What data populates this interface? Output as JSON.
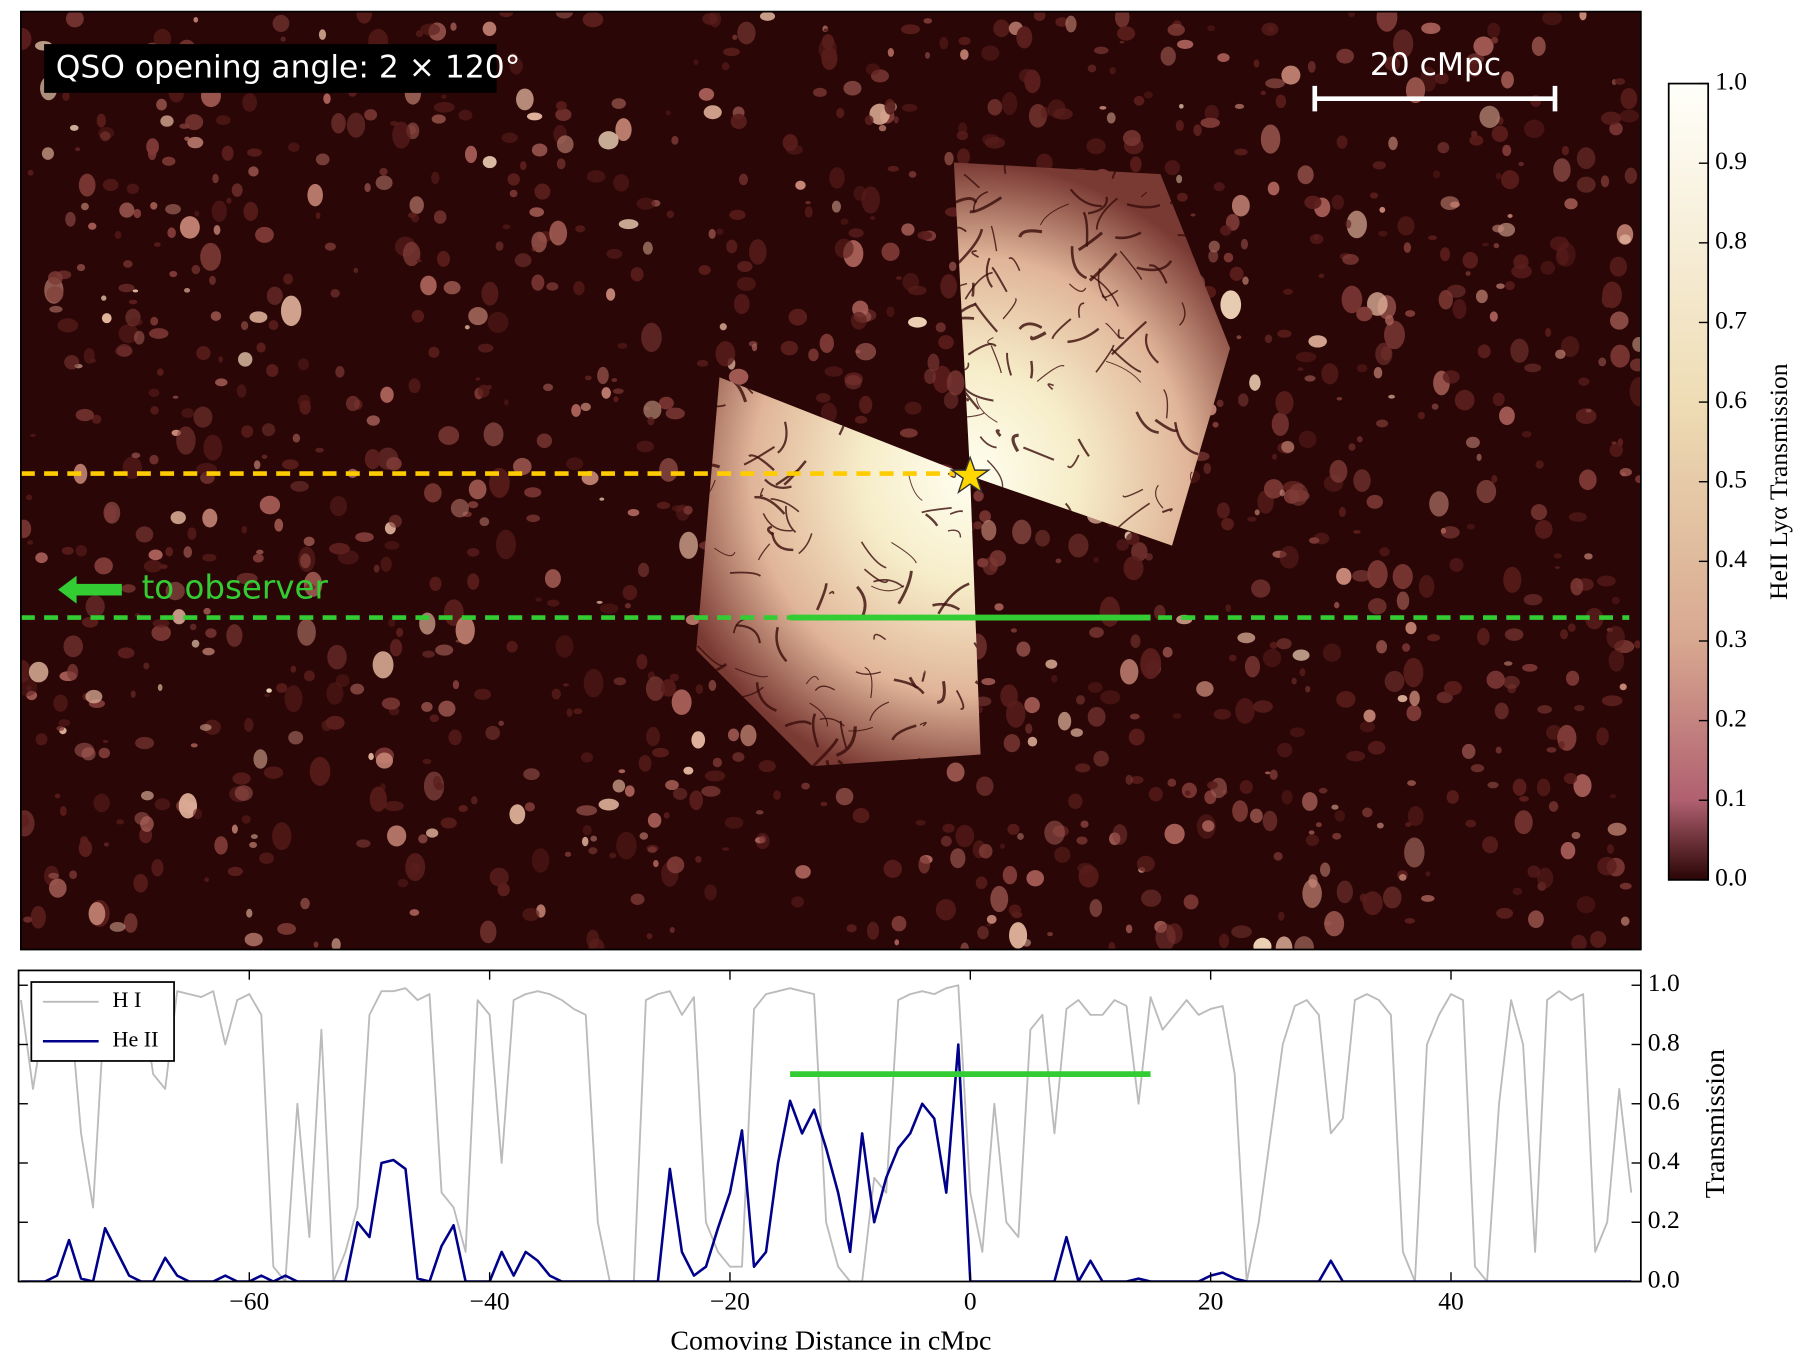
{
  "chart_data": [
    {
      "type": "image",
      "annotations": [
        "QSO opening angle: 2 × 120°",
        "20 cMpc",
        "to observer"
      ],
      "colorbar": {
        "label": "HeII Lyα Transmission",
        "lim": [
          0,
          1
        ],
        "ticks": [
          {
            "value": 0,
            "label": "0.0"
          },
          {
            "value": 0.1,
            "label": "0.1"
          },
          {
            "value": 0.2,
            "label": "0.2"
          },
          {
            "value": 0.3,
            "label": "0.3"
          },
          {
            "value": 0.4,
            "label": "0.4"
          },
          {
            "value": 0.5,
            "label": "0.5"
          },
          {
            "value": 0.6,
            "label": "0.6"
          },
          {
            "value": 0.7,
            "label": "0.7"
          },
          {
            "value": 0.8,
            "label": "0.8"
          },
          {
            "value": 0.9,
            "label": "0.9"
          },
          {
            "value": 1,
            "label": "1.0"
          }
        ]
      }
    },
    {
      "type": "line",
      "xlabel": "Comoving Distance in cMpc",
      "ylabel": "Transmission",
      "xlim": [
        -79.2,
        55.8
      ],
      "ylim": [
        0,
        1.05
      ],
      "xticks": [
        {
          "value": -60,
          "label": "−60"
        },
        {
          "value": -40,
          "label": "−40"
        },
        {
          "value": -20,
          "label": "−20"
        },
        0,
        20,
        40
      ],
      "yticks": [
        {
          "value": 0,
          "label": "0.0"
        },
        {
          "value": 0.2,
          "label": "0.2"
        },
        {
          "value": 0.4,
          "label": "0.4"
        },
        {
          "value": 0.6,
          "label": "0.6"
        },
        {
          "value": 0.8,
          "label": "0.8"
        },
        {
          "value": 1,
          "label": "1.0"
        }
      ],
      "legend": "upper left",
      "x": [
        -79,
        -78,
        -77,
        -76,
        -75,
        -74,
        -73,
        -72,
        -71,
        -70,
        -69,
        -68,
        -67,
        -66,
        -65,
        -64,
        -63,
        -62,
        -61,
        -60,
        -59,
        -58,
        -57,
        -56,
        -55,
        -54,
        -53,
        -52,
        -51,
        -50,
        -49,
        -48,
        -47,
        -46,
        -45,
        -44,
        -43,
        -42,
        -41,
        -40,
        -39,
        -38,
        -37,
        -36,
        -35,
        -34,
        -33,
        -32,
        -31,
        -30,
        -29,
        -28,
        -27,
        -26,
        -25,
        -24,
        -23,
        -22,
        -21,
        -20,
        -19,
        -18,
        -17,
        -16,
        -15,
        -14,
        -13,
        -12,
        -11,
        -10,
        -9,
        -8,
        -7,
        -6,
        -5,
        -4,
        -3,
        -2,
        -1,
        0,
        1,
        2,
        3,
        4,
        5,
        6,
        7,
        8,
        9,
        10,
        11,
        12,
        13,
        14,
        15,
        16,
        17,
        18,
        19,
        20,
        21,
        22,
        23,
        24,
        25,
        26,
        27,
        28,
        29,
        30,
        31,
        32,
        33,
        34,
        35,
        36,
        37,
        38,
        39,
        40,
        41,
        42,
        43,
        44,
        45,
        46,
        47,
        48,
        49,
        50,
        51,
        52,
        53,
        54,
        55
      ],
      "series": [
        {
          "name": "H I",
          "color": "#bbbbbb",
          "values": [
            0.95,
            0.65,
            0.9,
            0.98,
            0.97,
            0.5,
            0.25,
            0.95,
            0.98,
            0.97,
            0.98,
            0.7,
            0.65,
            0.98,
            0.97,
            0.96,
            0.98,
            0.8,
            0.95,
            0.97,
            0.9,
            0.05,
            0,
            0.6,
            0.15,
            0.85,
            0,
            0.1,
            0.25,
            0.9,
            0.98,
            0.98,
            0.99,
            0.95,
            0.97,
            0.3,
            0.25,
            0.1,
            0.95,
            0.9,
            0.4,
            0.95,
            0.97,
            0.98,
            0.97,
            0.95,
            0.92,
            0.9,
            0.2,
            0,
            0,
            0,
            0.95,
            0.97,
            0.98,
            0.9,
            0.96,
            0.2,
            0.1,
            0.05,
            0.05,
            0.92,
            0.97,
            0.98,
            0.99,
            0.98,
            0.97,
            0.2,
            0.05,
            0,
            0,
            0.35,
            0.3,
            0.95,
            0.97,
            0.98,
            0.97,
            0.99,
            1,
            0.3,
            0.1,
            0.6,
            0.2,
            0.15,
            0.85,
            0.9,
            0.5,
            0.92,
            0.95,
            0.9,
            0.9,
            0.95,
            0.93,
            0.6,
            0.96,
            0.85,
            0.9,
            0.95,
            0.9,
            0.92,
            0.93,
            0.7,
            0,
            0.2,
            0.5,
            0.8,
            0.93,
            0.95,
            0.9,
            0.5,
            0.55,
            0.95,
            0.97,
            0.95,
            0.9,
            0.1,
            0,
            0.8,
            0.9,
            0.97,
            0.95,
            0.05,
            0,
            0.6,
            0.95,
            0.8,
            0.1,
            0.95,
            0.98,
            0.95,
            0.97,
            0.1,
            0.2,
            0.65,
            0.3
          ]
        },
        {
          "name": "He II",
          "color": "#00008b",
          "values": [
            0,
            0,
            0,
            0.02,
            0.14,
            0.01,
            0,
            0.18,
            0.1,
            0.02,
            0,
            0,
            0.08,
            0.02,
            0,
            0,
            0,
            0.02,
            0,
            0,
            0.02,
            0,
            0.02,
            0,
            0,
            0,
            0,
            0,
            0.2,
            0.15,
            0.4,
            0.41,
            0.38,
            0.01,
            0,
            0.12,
            0.19,
            0,
            0,
            0,
            0.1,
            0.02,
            0.1,
            0.07,
            0.02,
            0,
            0,
            0,
            0,
            0,
            0,
            0,
            0,
            0,
            0.38,
            0.1,
            0.02,
            0.05,
            0.18,
            0.3,
            0.51,
            0.05,
            0.1,
            0.4,
            0.61,
            0.5,
            0.58,
            0.45,
            0.3,
            0.1,
            0.5,
            0.2,
            0.35,
            0.45,
            0.5,
            0.6,
            0.55,
            0.3,
            0.8,
            0,
            0,
            0,
            0,
            0,
            0,
            0,
            0,
            0.15,
            0,
            0.07,
            0,
            0,
            0,
            0.01,
            0,
            0,
            0,
            0,
            0,
            0.02,
            0.03,
            0.01,
            0,
            0,
            0,
            0,
            0,
            0,
            0,
            0.07,
            0,
            0,
            0,
            0,
            0,
            0,
            0,
            0,
            0,
            0,
            0,
            0,
            0,
            0,
            0,
            0,
            0,
            0,
            0,
            0,
            0,
            0,
            0,
            0,
            0
          ]
        }
      ],
      "highlight": {
        "x": [
          -15,
          15
        ],
        "y": 0.7,
        "color": "#33cc33"
      }
    }
  ]
}
